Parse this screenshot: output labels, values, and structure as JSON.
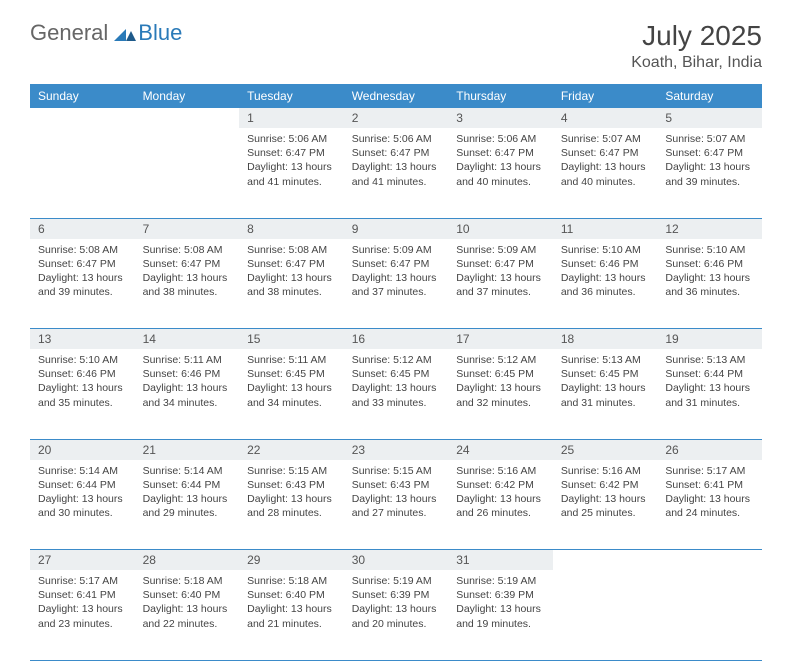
{
  "logo": {
    "general": "General",
    "blue": "Blue"
  },
  "title": "July 2025",
  "location": "Koath, Bihar, India",
  "colors": {
    "header_bg": "#3b8bc9",
    "header_text": "#ffffff",
    "daynum_bg": "#eceff1",
    "border": "#3b8bc9",
    "logo_general": "#666666",
    "logo_blue": "#2a7ab8"
  },
  "weekdays": [
    "Sunday",
    "Monday",
    "Tuesday",
    "Wednesday",
    "Thursday",
    "Friday",
    "Saturday"
  ],
  "weeks": [
    {
      "nums": [
        "",
        "",
        "1",
        "2",
        "3",
        "4",
        "5"
      ],
      "cells": [
        null,
        null,
        {
          "sunrise": "5:06 AM",
          "sunset": "6:47 PM",
          "daylight": "13 hours and 41 minutes."
        },
        {
          "sunrise": "5:06 AM",
          "sunset": "6:47 PM",
          "daylight": "13 hours and 41 minutes."
        },
        {
          "sunrise": "5:06 AM",
          "sunset": "6:47 PM",
          "daylight": "13 hours and 40 minutes."
        },
        {
          "sunrise": "5:07 AM",
          "sunset": "6:47 PM",
          "daylight": "13 hours and 40 minutes."
        },
        {
          "sunrise": "5:07 AM",
          "sunset": "6:47 PM",
          "daylight": "13 hours and 39 minutes."
        }
      ]
    },
    {
      "nums": [
        "6",
        "7",
        "8",
        "9",
        "10",
        "11",
        "12"
      ],
      "cells": [
        {
          "sunrise": "5:08 AM",
          "sunset": "6:47 PM",
          "daylight": "13 hours and 39 minutes."
        },
        {
          "sunrise": "5:08 AM",
          "sunset": "6:47 PM",
          "daylight": "13 hours and 38 minutes."
        },
        {
          "sunrise": "5:08 AM",
          "sunset": "6:47 PM",
          "daylight": "13 hours and 38 minutes."
        },
        {
          "sunrise": "5:09 AM",
          "sunset": "6:47 PM",
          "daylight": "13 hours and 37 minutes."
        },
        {
          "sunrise": "5:09 AM",
          "sunset": "6:47 PM",
          "daylight": "13 hours and 37 minutes."
        },
        {
          "sunrise": "5:10 AM",
          "sunset": "6:46 PM",
          "daylight": "13 hours and 36 minutes."
        },
        {
          "sunrise": "5:10 AM",
          "sunset": "6:46 PM",
          "daylight": "13 hours and 36 minutes."
        }
      ]
    },
    {
      "nums": [
        "13",
        "14",
        "15",
        "16",
        "17",
        "18",
        "19"
      ],
      "cells": [
        {
          "sunrise": "5:10 AM",
          "sunset": "6:46 PM",
          "daylight": "13 hours and 35 minutes."
        },
        {
          "sunrise": "5:11 AM",
          "sunset": "6:46 PM",
          "daylight": "13 hours and 34 minutes."
        },
        {
          "sunrise": "5:11 AM",
          "sunset": "6:45 PM",
          "daylight": "13 hours and 34 minutes."
        },
        {
          "sunrise": "5:12 AM",
          "sunset": "6:45 PM",
          "daylight": "13 hours and 33 minutes."
        },
        {
          "sunrise": "5:12 AM",
          "sunset": "6:45 PM",
          "daylight": "13 hours and 32 minutes."
        },
        {
          "sunrise": "5:13 AM",
          "sunset": "6:45 PM",
          "daylight": "13 hours and 31 minutes."
        },
        {
          "sunrise": "5:13 AM",
          "sunset": "6:44 PM",
          "daylight": "13 hours and 31 minutes."
        }
      ]
    },
    {
      "nums": [
        "20",
        "21",
        "22",
        "23",
        "24",
        "25",
        "26"
      ],
      "cells": [
        {
          "sunrise": "5:14 AM",
          "sunset": "6:44 PM",
          "daylight": "13 hours and 30 minutes."
        },
        {
          "sunrise": "5:14 AM",
          "sunset": "6:44 PM",
          "daylight": "13 hours and 29 minutes."
        },
        {
          "sunrise": "5:15 AM",
          "sunset": "6:43 PM",
          "daylight": "13 hours and 28 minutes."
        },
        {
          "sunrise": "5:15 AM",
          "sunset": "6:43 PM",
          "daylight": "13 hours and 27 minutes."
        },
        {
          "sunrise": "5:16 AM",
          "sunset": "6:42 PM",
          "daylight": "13 hours and 26 minutes."
        },
        {
          "sunrise": "5:16 AM",
          "sunset": "6:42 PM",
          "daylight": "13 hours and 25 minutes."
        },
        {
          "sunrise": "5:17 AM",
          "sunset": "6:41 PM",
          "daylight": "13 hours and 24 minutes."
        }
      ]
    },
    {
      "nums": [
        "27",
        "28",
        "29",
        "30",
        "31",
        "",
        ""
      ],
      "cells": [
        {
          "sunrise": "5:17 AM",
          "sunset": "6:41 PM",
          "daylight": "13 hours and 23 minutes."
        },
        {
          "sunrise": "5:18 AM",
          "sunset": "6:40 PM",
          "daylight": "13 hours and 22 minutes."
        },
        {
          "sunrise": "5:18 AM",
          "sunset": "6:40 PM",
          "daylight": "13 hours and 21 minutes."
        },
        {
          "sunrise": "5:19 AM",
          "sunset": "6:39 PM",
          "daylight": "13 hours and 20 minutes."
        },
        {
          "sunrise": "5:19 AM",
          "sunset": "6:39 PM",
          "daylight": "13 hours and 19 minutes."
        },
        null,
        null
      ]
    }
  ],
  "labels": {
    "sunrise": "Sunrise:",
    "sunset": "Sunset:",
    "daylight": "Daylight:"
  }
}
